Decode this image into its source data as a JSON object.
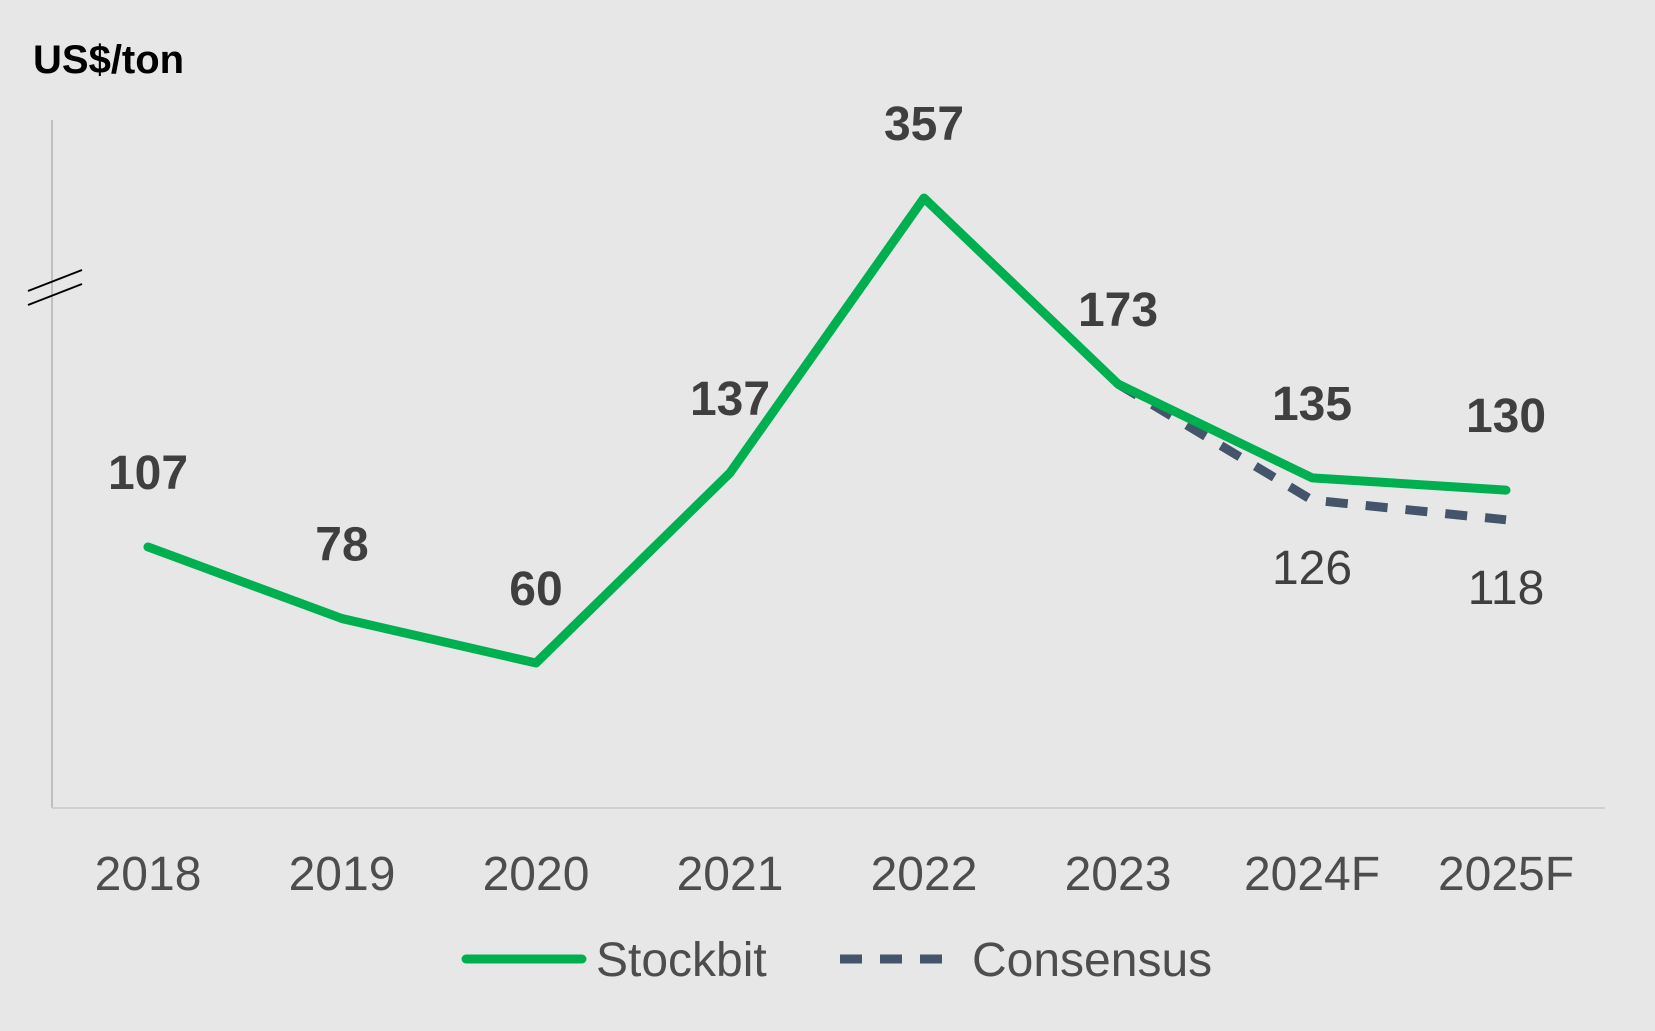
{
  "chart_data": {
    "type": "line",
    "ylabel": "US$/ton",
    "categories": [
      "2018",
      "2019",
      "2020",
      "2021",
      "2022",
      "2023",
      "2024F",
      "2025F"
    ],
    "axis_break": true,
    "grid": false,
    "legend_position": "bottom",
    "series": [
      {
        "name": "Stockbit",
        "color": "#00b050",
        "style": "solid",
        "values": [
          107,
          78,
          60,
          137,
          357,
          173,
          135,
          130
        ],
        "labels": [
          "107",
          "78",
          "60",
          "137",
          "357",
          "173",
          "135",
          "130"
        ]
      },
      {
        "name": "Consensus",
        "color": "#44546a",
        "style": "dashed",
        "values": [
          null,
          null,
          null,
          null,
          null,
          173,
          126,
          118
        ],
        "labels": [
          "",
          "",
          "",
          "",
          "",
          "",
          "126",
          "118"
        ]
      }
    ]
  }
}
